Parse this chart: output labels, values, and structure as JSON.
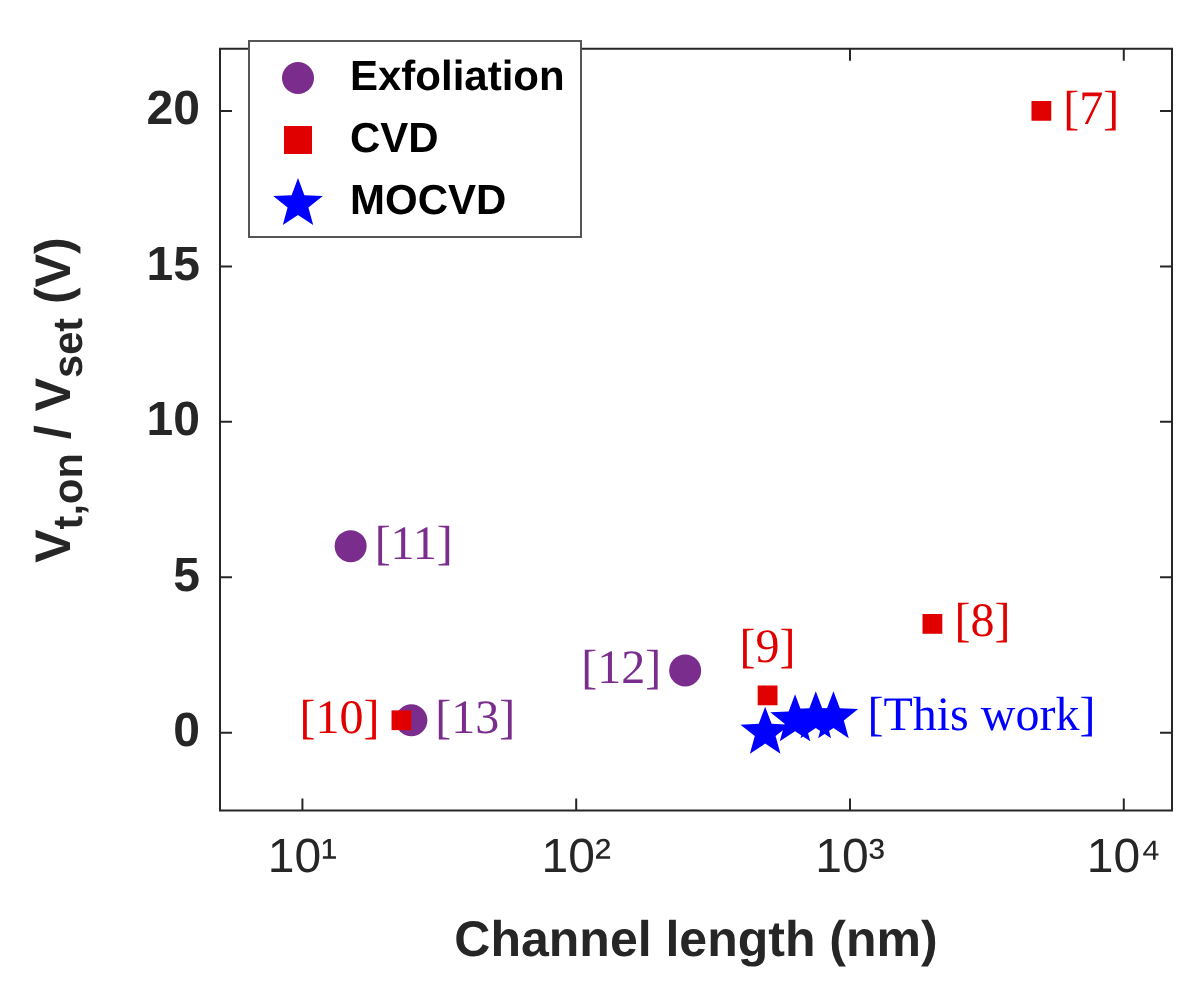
{
  "chart_data": {
    "type": "scatter",
    "xlabel": "Channel length (nm)",
    "ylabel": "V$_{t,on}$ / V$_{set}$ (V)",
    "log": "x",
    "xlim": [
      5,
      15000
    ],
    "xticks": [
      {
        "value": 10,
        "label": "10¹"
      },
      {
        "value": 100,
        "label": "10²"
      },
      {
        "value": 1000,
        "label": "10³"
      },
      {
        "value": 10000,
        "label": "10⁴"
      }
    ],
    "ylim": [
      -2.5,
      22
    ],
    "yticks": [
      0,
      5,
      10,
      15,
      20
    ],
    "grid": false,
    "legend": "top left",
    "series": [
      {
        "name": "Exfoliation",
        "color": "#7b2d8e",
        "marker": "circle",
        "x": [
          15,
          25,
          250
        ],
        "values": [
          6,
          0.4,
          2
        ]
      },
      {
        "name": "CVD",
        "color": "#e00000",
        "marker": "square",
        "x": [
          5000,
          2000,
          500,
          23
        ],
        "values": [
          20,
          3.5,
          1.2,
          0.4
        ]
      },
      {
        "name": "MOCVD",
        "color": "#0000ff",
        "marker": "star",
        "x": [
          490,
          630,
          750,
          870
        ],
        "values": [
          0,
          0.4,
          0.5,
          0.5
        ]
      }
    ],
    "annotations": [
      {
        "text": "[7]",
        "x": 5000,
        "y": 20
      },
      {
        "text": "[8]",
        "x": 2000,
        "y": 3.5
      },
      {
        "text": "[9]",
        "x": 500,
        "y": 1.2
      },
      {
        "text": "[10]",
        "x": 23,
        "y": 0.4
      },
      {
        "text": "[11]",
        "x": 15,
        "y": 6
      },
      {
        "text": "[12]",
        "x": 250,
        "y": 2
      },
      {
        "text": "[13]",
        "x": 25,
        "y": 0.4
      },
      {
        "text": "[This work]",
        "x": 870,
        "y": 0.5
      }
    ]
  }
}
